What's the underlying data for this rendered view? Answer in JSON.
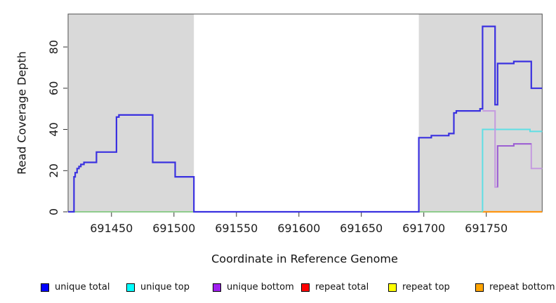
{
  "chart_data": {
    "type": "line",
    "subtype": "step-coverage",
    "title": "",
    "xlabel": "Coordinate in Reference Genome",
    "ylabel": "Read Coverage Depth",
    "xlim": [
      691415.3,
      691794.7
    ],
    "ylim": [
      0,
      96
    ],
    "x_ticks": [
      691450,
      691500,
      691550,
      691600,
      691650,
      691700,
      691750
    ],
    "y_ticks": [
      0,
      20,
      40,
      60,
      80
    ],
    "grid": false,
    "legend_position": "bottom",
    "plot_background": "#ffffff",
    "box_color": "#4f4f4f",
    "axis_color": "#333333",
    "shaded_regions": [
      {
        "name": "repeat region left",
        "x0": 691415.3,
        "x1": 691516,
        "color": "#d9d9d9"
      },
      {
        "name": "repeat region right",
        "x0": 691696,
        "x1": 691794.7,
        "color": "#d9d9d9"
      }
    ],
    "series": [
      {
        "name": "repeat baseline left",
        "color": "#8fcc8c",
        "width": 2,
        "steps": [
          [
            691415.3,
            0
          ],
          [
            691516,
            0
          ]
        ]
      },
      {
        "name": "repeat baseline right",
        "color": "#8fcc8c",
        "width": 2,
        "steps": [
          [
            691696,
            0
          ],
          [
            691747,
            0
          ]
        ]
      },
      {
        "name": "repeat bottom",
        "color": "#ff9612",
        "width": 2.2,
        "steps": [
          [
            691747,
            0
          ],
          [
            691794.7,
            0
          ]
        ]
      },
      {
        "name": "unique top",
        "color": "#5fdfe4",
        "width": 2,
        "steps": [
          [
            691747,
            0
          ],
          [
            691747,
            40
          ],
          [
            691785,
            39
          ],
          [
            691794.7,
            39
          ]
        ]
      },
      {
        "name": "unique bottom",
        "color": "#c49adf",
        "width": 2,
        "steps": [
          [
            691747,
            49
          ],
          [
            691757,
            12
          ],
          [
            691759,
            32
          ],
          [
            691772,
            33
          ],
          [
            691786,
            21
          ],
          [
            691794.7,
            21
          ]
        ]
      },
      {
        "name": "unique bottom overlay",
        "color": "#9c5fd2",
        "width": 2,
        "steps": [
          [
            691759,
            12
          ],
          [
            691759,
            32
          ],
          [
            691772,
            33
          ],
          [
            691786,
            33
          ]
        ]
      },
      {
        "name": "unique total",
        "color": "#3a31e0",
        "width": 2.2,
        "steps": [
          [
            691415.3,
            0
          ],
          [
            691420,
            17
          ],
          [
            691421,
            19
          ],
          [
            691422.5,
            21
          ],
          [
            691424,
            22
          ],
          [
            691425.5,
            23
          ],
          [
            691428,
            24
          ],
          [
            691438,
            29
          ],
          [
            691454,
            46
          ],
          [
            691456,
            47
          ],
          [
            691483,
            24
          ],
          [
            691501,
            17
          ],
          [
            691516,
            0
          ],
          [
            691696,
            36
          ],
          [
            691706,
            37
          ],
          [
            691720,
            38
          ],
          [
            691724,
            48
          ],
          [
            691726,
            49
          ],
          [
            691745,
            50
          ],
          [
            691747,
            90
          ],
          [
            691757,
            52
          ],
          [
            691759,
            72
          ],
          [
            691772,
            73
          ],
          [
            691786,
            60
          ],
          [
            691794.7,
            60
          ]
        ]
      }
    ],
    "legend": [
      {
        "label": "unique total",
        "color": "#0000ff"
      },
      {
        "label": "unique top",
        "color": "#00ffff"
      },
      {
        "label": "unique bottom",
        "color": "#a020f0"
      },
      {
        "label": "repeat total",
        "color": "#ff0000"
      },
      {
        "label": "repeat top",
        "color": "#ffff00"
      },
      {
        "label": "repeat bottom",
        "color": "#ffa500"
      }
    ]
  }
}
